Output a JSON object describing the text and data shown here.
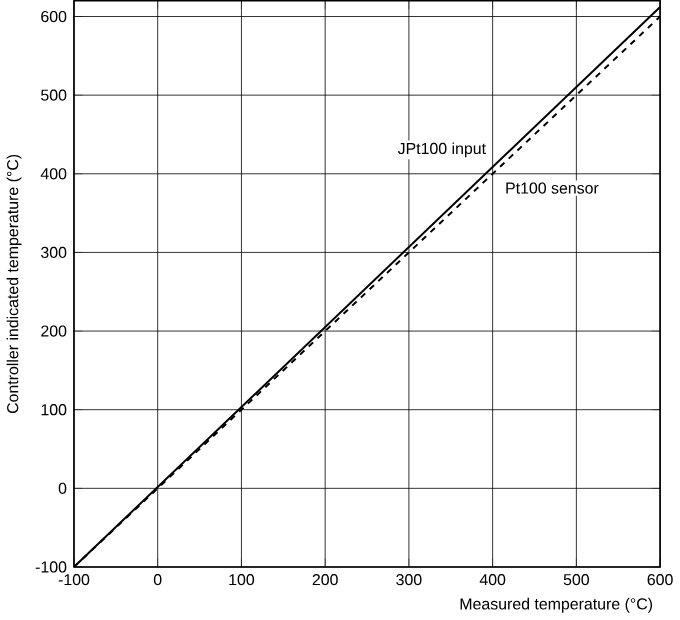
{
  "chart_data": {
    "type": "line",
    "xlabel": "Measured temperature (°C)",
    "ylabel": "Controller indicated temperature (°C)",
    "x": [
      -100,
      600
    ],
    "series": [
      {
        "name": "JPt100 input",
        "color": "#000000",
        "values": [
          -100,
          612
        ],
        "line_style": "solid"
      },
      {
        "name": "Pt100 sensor",
        "color": "#000000",
        "values": [
          -100,
          600
        ],
        "line_style": "dashed"
      }
    ],
    "xlim": [
      -100,
      600
    ],
    "ylim": [
      -100,
      620
    ],
    "xticks": [
      -100,
      0,
      100,
      200,
      300,
      400,
      500,
      600
    ],
    "yticks": [
      -100,
      0,
      100,
      200,
      300,
      400,
      500,
      600
    ],
    "grid": true,
    "legend": false,
    "marker": "none"
  }
}
